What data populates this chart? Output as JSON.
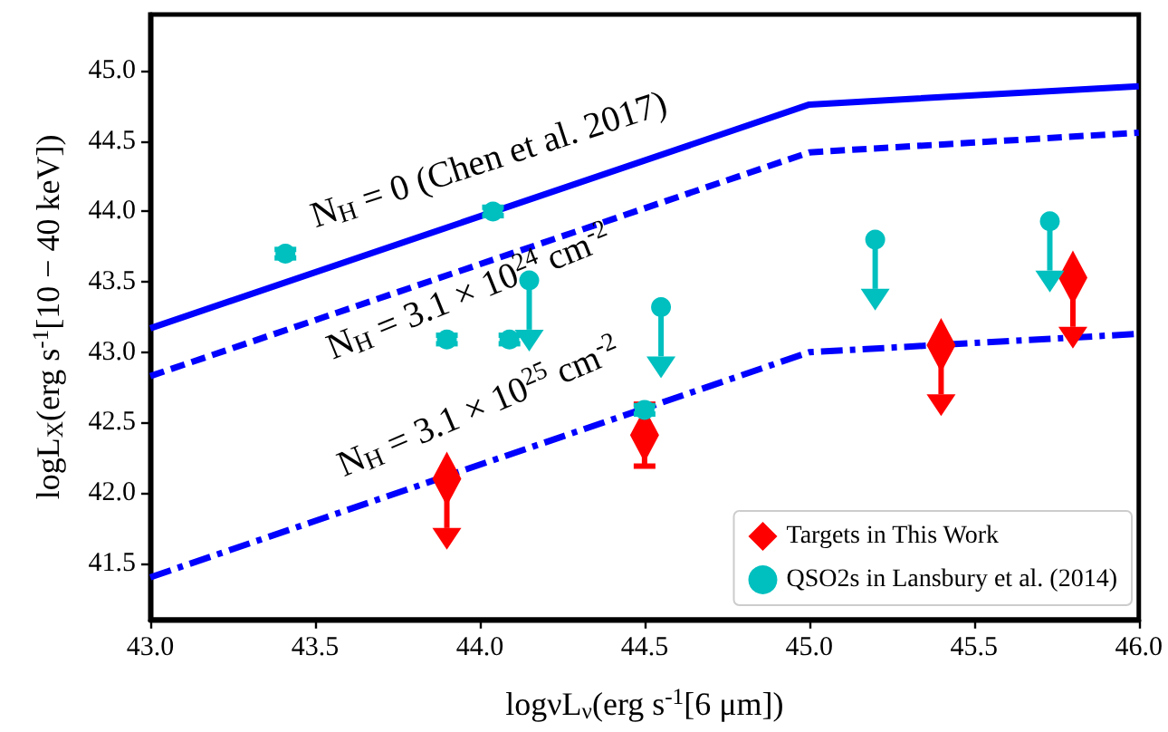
{
  "chart_data": {
    "type": "scatter",
    "xlabel": "logνL$_{ν}$(erg s$^{-1}$[6 μm])",
    "ylabel": "logL$_{X}$(erg s$^{-1}$[10 − 40 keV])",
    "xlim": [
      43.0,
      46.0
    ],
    "xticks": [
      {
        "value": 43.0,
        "label": "43.0"
      },
      {
        "value": 43.5,
        "label": "43.5"
      },
      {
        "value": 44.0,
        "label": "44.0"
      },
      {
        "value": 44.5,
        "label": "44.5"
      },
      {
        "value": 45.0,
        "label": "45.0"
      },
      {
        "value": 45.5,
        "label": "45.5"
      },
      {
        "value": 46.0,
        "label": "46.0"
      }
    ],
    "ylim": [
      41.1,
      45.4
    ],
    "yticks": [
      {
        "value": 41.5,
        "label": "41.5"
      },
      {
        "value": 42.0,
        "label": "42.0"
      },
      {
        "value": 42.5,
        "label": "42.5"
      },
      {
        "value": 43.0,
        "label": "43.0"
      },
      {
        "value": 43.5,
        "label": "43.5"
      },
      {
        "value": 44.0,
        "label": "44.0"
      },
      {
        "value": 44.5,
        "label": "44.5"
      },
      {
        "value": 45.0,
        "label": "45.0"
      }
    ],
    "legend": "bottom right",
    "series": [
      {
        "type": "line",
        "color": "#0000ff",
        "line_style": "solid",
        "marker": "none",
        "x": [
          43.0,
          45.0,
          46.0
        ],
        "values": [
          43.17,
          44.76,
          44.89
        ]
      },
      {
        "type": "line",
        "color": "#0000ff",
        "line_style": "dashed",
        "marker": "none",
        "x": [
          43.0,
          45.0,
          46.0
        ],
        "values": [
          42.83,
          44.42,
          44.56
        ]
      },
      {
        "type": "line",
        "color": "#0000ff",
        "line_style": "dashdot",
        "marker": "none",
        "x": [
          43.0,
          45.0,
          46.0
        ],
        "values": [
          41.4,
          43.0,
          43.13
        ]
      },
      {
        "name": "Targets in This Work",
        "color": "#ff0000",
        "marker": "diamond",
        "x": [
          43.9,
          44.5,
          45.4,
          45.8
        ],
        "values": [
          42.1,
          42.41,
          43.05,
          43.53
        ],
        "errors": [
          [
            41.75,
            42.1
          ],
          0.22,
          [
            42.7,
            43.05
          ],
          [
            43.18,
            43.53
          ]
        ]
      },
      {
        "name": "QSO2s in Lansbury et al. (2014)",
        "color": "#00bfbf",
        "marker": "circle",
        "x": [
          43.41,
          44.04,
          43.9,
          44.09,
          44.15,
          44.55,
          44.5,
          45.2,
          45.73
        ],
        "values": [
          43.7,
          44.0,
          43.09,
          43.09,
          43.51,
          43.32,
          42.59,
          43.8,
          43.93
        ],
        "errors": [
          0.03,
          0.03,
          0.03,
          0.03,
          [
            43.16,
            43.51
          ],
          [
            42.97,
            43.32
          ],
          0.03,
          [
            43.45,
            43.8
          ],
          [
            43.58,
            43.93
          ]
        ]
      }
    ],
    "annotations": [
      "N$_{H}$ = 0 (Chen et al. 2017)",
      "N$_{H}$ = 3.1 × 10$^{24}$ cm$^{-2}$",
      "N$_{H}$ = 3.1 × 10$^{25}$ cm$^{-2}$"
    ]
  }
}
